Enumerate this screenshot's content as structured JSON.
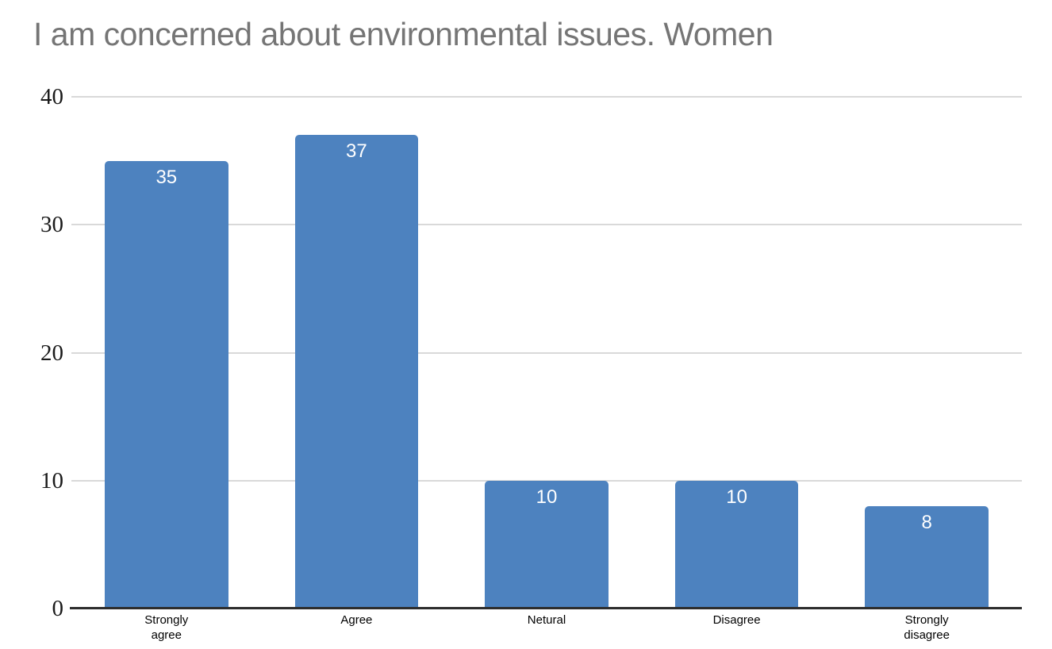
{
  "title": "I am concerned about environmental issues. Women",
  "colors": {
    "bar": "#4d82bf",
    "title_text": "#757575",
    "gridline": "#d9d9d9",
    "axis_line": "#2d2d2d",
    "bar_label": "#ffffff",
    "tick_label": "#1a1a1a",
    "category_label": "#000000"
  },
  "chart_data": {
    "type": "bar",
    "title": "I am concerned about environmental issues. Women",
    "categories": [
      "Strongly\nagree",
      "Agree",
      "Netural",
      "Disagree",
      "Strongly\ndisagree"
    ],
    "values": [
      35,
      37,
      10,
      10,
      8
    ],
    "bar_value_labels": [
      "35",
      "37",
      "10",
      "10",
      "8"
    ],
    "xlabel": "",
    "ylabel": "",
    "ylim": [
      0,
      40
    ],
    "yticks": [
      0,
      10,
      20,
      30,
      40
    ],
    "grid": true,
    "legend_position": "none",
    "bar_labels_shown": true
  }
}
